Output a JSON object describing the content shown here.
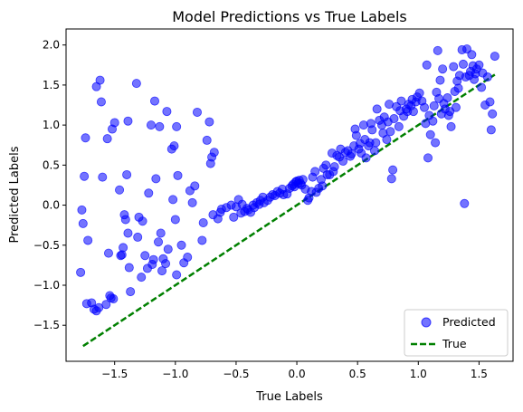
{
  "chart_data": {
    "type": "scatter",
    "title": "Model Predictions vs True Labels",
    "xlabel": "True Labels",
    "ylabel": "Predicted Labels",
    "xlim": [
      -1.9,
      1.78
    ],
    "ylim": [
      -1.95,
      2.2
    ],
    "xticks": [
      -1.5,
      -1.0,
      -0.5,
      0.0,
      0.5,
      1.0,
      1.5
    ],
    "xtick_labels": [
      "−1.5",
      "−1.0",
      "−0.5",
      "0.0",
      "0.5",
      "1.0",
      "1.5"
    ],
    "yticks": [
      -1.5,
      -1.0,
      -0.5,
      0.0,
      0.5,
      1.0,
      1.5,
      2.0
    ],
    "ytick_labels": [
      "−1.5",
      "−1.0",
      "−0.5",
      "0.0",
      "0.5",
      "1.0",
      "1.5",
      "2.0"
    ],
    "legend_position": "lower-right",
    "series": [
      {
        "name": "Predicted",
        "kind": "scatter",
        "color": "#0000ff",
        "alpha": 0.55,
        "points": [
          [
            -1.78,
            -0.84
          ],
          [
            -1.77,
            -0.06
          ],
          [
            -1.76,
            -0.23
          ],
          [
            -1.75,
            0.36
          ],
          [
            -1.74,
            0.84
          ],
          [
            -1.73,
            -1.23
          ],
          [
            -1.72,
            -0.44
          ],
          [
            -1.69,
            -1.22
          ],
          [
            -1.67,
            -1.3
          ],
          [
            -1.65,
            -1.32
          ],
          [
            -1.65,
            1.48
          ],
          [
            -1.63,
            -1.28
          ],
          [
            -1.62,
            1.56
          ],
          [
            -1.61,
            1.29
          ],
          [
            -1.6,
            0.35
          ],
          [
            -1.57,
            -1.24
          ],
          [
            -1.56,
            0.83
          ],
          [
            -1.55,
            -0.6
          ],
          [
            -1.54,
            -1.13
          ],
          [
            -1.53,
            -1.16
          ],
          [
            -1.52,
            0.95
          ],
          [
            -1.51,
            -1.17
          ],
          [
            -1.5,
            1.03
          ],
          [
            -1.46,
            0.19
          ],
          [
            -1.45,
            -0.63
          ],
          [
            -1.44,
            -0.62
          ],
          [
            -1.43,
            -0.53
          ],
          [
            -1.42,
            -0.12
          ],
          [
            -1.41,
            -0.18
          ],
          [
            -1.4,
            0.38
          ],
          [
            -1.39,
            1.05
          ],
          [
            -1.39,
            -0.35
          ],
          [
            -1.38,
            -0.78
          ],
          [
            -1.37,
            -1.08
          ],
          [
            -1.32,
            1.52
          ],
          [
            -1.31,
            -0.4
          ],
          [
            -1.3,
            -0.15
          ],
          [
            -1.28,
            -0.9
          ],
          [
            -1.27,
            -0.2
          ],
          [
            -1.25,
            -0.63
          ],
          [
            -1.23,
            -0.79
          ],
          [
            -1.22,
            0.15
          ],
          [
            -1.2,
            1.0
          ],
          [
            -1.19,
            -0.74
          ],
          [
            -1.18,
            -0.68
          ],
          [
            -1.17,
            1.3
          ],
          [
            -1.16,
            0.33
          ],
          [
            -1.14,
            -0.46
          ],
          [
            -1.13,
            0.98
          ],
          [
            -1.12,
            -0.35
          ],
          [
            -1.11,
            -0.82
          ],
          [
            -1.1,
            -0.67
          ],
          [
            -1.08,
            -0.73
          ],
          [
            -1.07,
            1.17
          ],
          [
            -1.06,
            -0.55
          ],
          [
            -1.03,
            0.7
          ],
          [
            -1.02,
            0.07
          ],
          [
            -1.01,
            0.74
          ],
          [
            -1.0,
            -0.18
          ],
          [
            -0.99,
            0.98
          ],
          [
            -0.99,
            -0.87
          ],
          [
            -0.98,
            0.37
          ],
          [
            -0.95,
            -0.5
          ],
          [
            -0.93,
            -0.72
          ],
          [
            -0.9,
            -0.65
          ],
          [
            -0.88,
            0.18
          ],
          [
            -0.86,
            0.03
          ],
          [
            -0.84,
            0.24
          ],
          [
            -0.82,
            1.16
          ],
          [
            -0.78,
            -0.44
          ],
          [
            -0.77,
            -0.22
          ],
          [
            -0.74,
            0.81
          ],
          [
            -0.72,
            1.04
          ],
          [
            -0.71,
            0.52
          ],
          [
            -0.7,
            0.6
          ],
          [
            -0.69,
            -0.12
          ],
          [
            -0.68,
            0.66
          ],
          [
            -0.65,
            -0.17
          ],
          [
            -0.63,
            -0.09
          ],
          [
            -0.62,
            -0.05
          ],
          [
            -0.58,
            -0.03
          ],
          [
            -0.54,
            0.0
          ],
          [
            -0.52,
            -0.15
          ],
          [
            -0.5,
            -0.02
          ],
          [
            -0.48,
            0.07
          ],
          [
            -0.46,
            -0.1
          ],
          [
            -0.45,
            0.01
          ],
          [
            -0.43,
            -0.08
          ],
          [
            -0.41,
            -0.04
          ],
          [
            -0.4,
            -0.06
          ],
          [
            -0.38,
            -0.09
          ],
          [
            -0.36,
            0.0
          ],
          [
            -0.35,
            -0.03
          ],
          [
            -0.33,
            0.03
          ],
          [
            -0.31,
            0.01
          ],
          [
            -0.3,
            0.06
          ],
          [
            -0.28,
            0.1
          ],
          [
            -0.27,
            0.03
          ],
          [
            -0.24,
            0.06
          ],
          [
            -0.22,
            0.1
          ],
          [
            -0.2,
            0.13
          ],
          [
            -0.18,
            0.12
          ],
          [
            -0.16,
            0.17
          ],
          [
            -0.14,
            0.15
          ],
          [
            -0.12,
            0.2
          ],
          [
            -0.11,
            0.13
          ],
          [
            -0.08,
            0.14
          ],
          [
            -0.06,
            0.21
          ],
          [
            -0.04,
            0.24
          ],
          [
            -0.03,
            0.26
          ],
          [
            -0.02,
            0.23
          ],
          [
            -0.01,
            0.29
          ],
          [
            0.0,
            0.3
          ],
          [
            0.01,
            0.27
          ],
          [
            0.02,
            0.31
          ],
          [
            0.03,
            0.27
          ],
          [
            0.04,
            0.25
          ],
          [
            0.05,
            0.32
          ],
          [
            0.07,
            0.2
          ],
          [
            0.09,
            0.06
          ],
          [
            0.1,
            0.09
          ],
          [
            0.12,
            0.17
          ],
          [
            0.13,
            0.35
          ],
          [
            0.15,
            0.42
          ],
          [
            0.16,
            0.16
          ],
          [
            0.18,
            0.21
          ],
          [
            0.2,
            0.32
          ],
          [
            0.21,
            0.24
          ],
          [
            0.22,
            0.46
          ],
          [
            0.24,
            0.5
          ],
          [
            0.25,
            0.38
          ],
          [
            0.27,
            0.38
          ],
          [
            0.29,
            0.65
          ],
          [
            0.3,
            0.42
          ],
          [
            0.31,
            0.48
          ],
          [
            0.33,
            0.62
          ],
          [
            0.35,
            0.6
          ],
          [
            0.36,
            0.7
          ],
          [
            0.38,
            0.55
          ],
          [
            0.4,
            0.66
          ],
          [
            0.42,
            0.68
          ],
          [
            0.44,
            0.61
          ],
          [
            0.45,
            0.64
          ],
          [
            0.47,
            0.74
          ],
          [
            0.48,
            0.95
          ],
          [
            0.49,
            0.87
          ],
          [
            0.51,
            0.7
          ],
          [
            0.52,
            0.77
          ],
          [
            0.53,
            0.65
          ],
          [
            0.55,
            1.0
          ],
          [
            0.56,
            0.82
          ],
          [
            0.57,
            0.59
          ],
          [
            0.59,
            0.74
          ],
          [
            0.6,
            0.78
          ],
          [
            0.61,
            1.02
          ],
          [
            0.62,
            0.94
          ],
          [
            0.64,
            0.68
          ],
          [
            0.65,
            0.78
          ],
          [
            0.66,
            1.2
          ],
          [
            0.68,
            1.06
          ],
          [
            0.7,
            1.0
          ],
          [
            0.71,
            0.9
          ],
          [
            0.72,
            1.1
          ],
          [
            0.74,
            0.82
          ],
          [
            0.75,
            1.04
          ],
          [
            0.76,
            1.26
          ],
          [
            0.77,
            0.92
          ],
          [
            0.78,
            0.33
          ],
          [
            0.79,
            0.44
          ],
          [
            0.8,
            1.08
          ],
          [
            0.82,
            1.23
          ],
          [
            0.84,
            0.98
          ],
          [
            0.85,
            1.18
          ],
          [
            0.86,
            1.3
          ],
          [
            0.88,
            1.11
          ],
          [
            0.9,
            1.2
          ],
          [
            0.91,
            1.17
          ],
          [
            0.92,
            1.26
          ],
          [
            0.94,
            1.24
          ],
          [
            0.95,
            1.32
          ],
          [
            0.96,
            1.17
          ],
          [
            0.98,
            1.29
          ],
          [
            0.99,
            1.35
          ],
          [
            1.01,
            1.4
          ],
          [
            1.03,
            1.3
          ],
          [
            1.05,
            1.22
          ],
          [
            1.06,
            1.02
          ],
          [
            1.07,
            1.75
          ],
          [
            1.08,
            0.59
          ],
          [
            1.09,
            1.12
          ],
          [
            1.1,
            0.88
          ],
          [
            1.12,
            1.05
          ],
          [
            1.13,
            1.24
          ],
          [
            1.14,
            0.78
          ],
          [
            1.15,
            1.41
          ],
          [
            1.16,
            1.93
          ],
          [
            1.17,
            1.33
          ],
          [
            1.18,
            1.56
          ],
          [
            1.19,
            1.14
          ],
          [
            1.2,
            1.7
          ],
          [
            1.21,
            1.27
          ],
          [
            1.22,
            1.2
          ],
          [
            1.24,
            1.34
          ],
          [
            1.25,
            1.12
          ],
          [
            1.26,
            1.17
          ],
          [
            1.27,
            0.98
          ],
          [
            1.29,
            1.73
          ],
          [
            1.3,
            1.42
          ],
          [
            1.31,
            1.22
          ],
          [
            1.32,
            1.55
          ],
          [
            1.33,
            1.46
          ],
          [
            1.34,
            1.62
          ],
          [
            1.36,
            1.94
          ],
          [
            1.37,
            1.76
          ],
          [
            1.38,
            0.02
          ],
          [
            1.39,
            1.6
          ],
          [
            1.4,
            1.95
          ],
          [
            1.42,
            1.62
          ],
          [
            1.43,
            1.67
          ],
          [
            1.44,
            1.88
          ],
          [
            1.45,
            1.74
          ],
          [
            1.46,
            1.57
          ],
          [
            1.47,
            1.64
          ],
          [
            1.48,
            1.7
          ],
          [
            1.5,
            1.75
          ],
          [
            1.52,
            1.47
          ],
          [
            1.53,
            1.65
          ],
          [
            1.55,
            1.25
          ],
          [
            1.57,
            1.6
          ],
          [
            1.59,
            1.29
          ],
          [
            1.6,
            0.94
          ],
          [
            1.61,
            1.14
          ],
          [
            1.63,
            1.86
          ]
        ]
      },
      {
        "name": "True",
        "kind": "line",
        "color": "#008000",
        "style": "dashed",
        "x": [
          -1.76,
          1.63
        ],
        "y": [
          -1.76,
          1.63
        ]
      }
    ]
  }
}
